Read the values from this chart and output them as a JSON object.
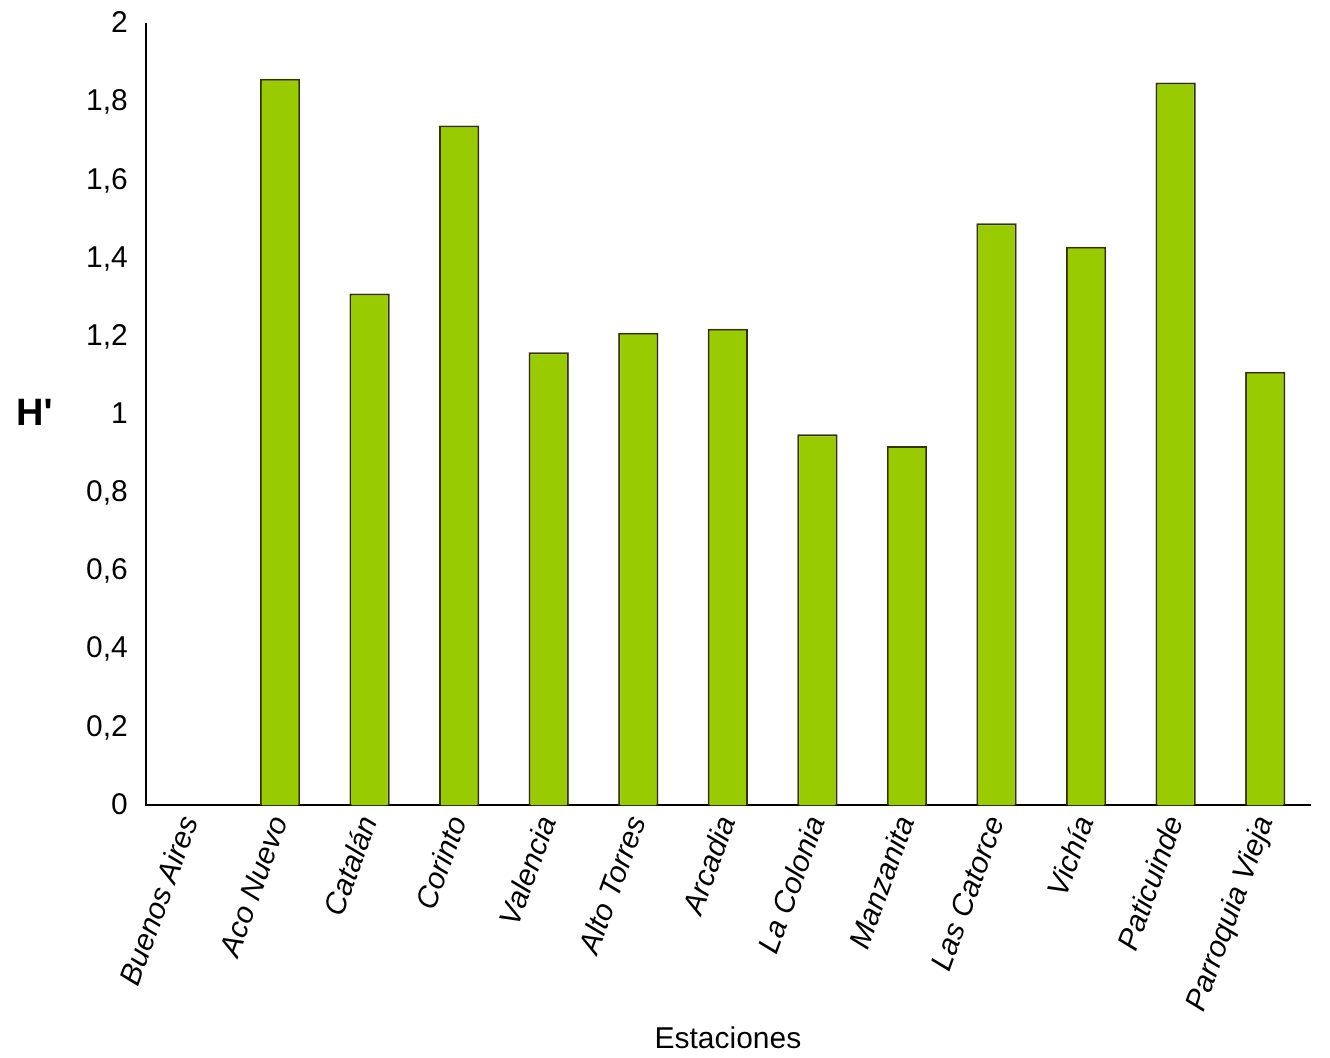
{
  "chart_data": {
    "type": "bar",
    "xlabel": "Estaciones",
    "ylabel": "H'",
    "categories": [
      "Buenos Aires",
      "Aco Nuevo",
      "Catalán",
      "Corinto",
      "Valencia",
      "Alto Torres",
      "Arcadia",
      "La Colonia",
      "Manzanita",
      "Las Catorce",
      "Vichía",
      "Paticuinde",
      "Parroquia Vieja"
    ],
    "values": [
      0,
      1.86,
      1.31,
      1.74,
      1.16,
      1.21,
      1.22,
      0.95,
      0.92,
      1.49,
      1.43,
      1.85,
      1.11
    ],
    "color": "#99cc00",
    "ylim": [
      0,
      2
    ],
    "yticks": [
      0,
      {
        "value": 0.2,
        "label": "0,2"
      },
      {
        "value": 0.4,
        "label": "0,4"
      },
      {
        "value": 0.6,
        "label": "0,6"
      },
      {
        "value": 0.8,
        "label": "0,8"
      },
      1,
      {
        "value": 1.2,
        "label": "1,2"
      },
      {
        "value": 1.4,
        "label": "1,4"
      },
      {
        "value": 1.6,
        "label": "1,6"
      },
      {
        "value": 1.8,
        "label": "1,8"
      },
      2
    ],
    "grid": false,
    "legend": false
  }
}
